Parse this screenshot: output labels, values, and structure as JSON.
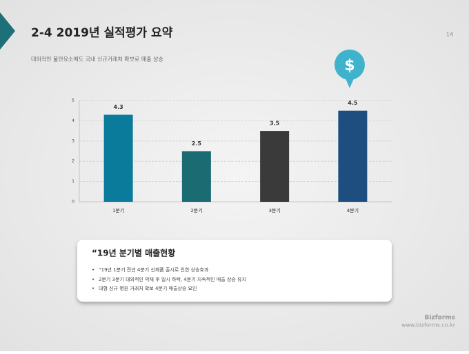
{
  "slide": {
    "title": "2-4 2019년 실적평가 요약",
    "page_number": "14",
    "subtitle": "대외적인 불안요소에도 국내 신규거래처 확보로 매출 상승",
    "icon_symbol": "$",
    "summary_title": "“19년 분기별 매출현황",
    "bullets": [
      "“19년 1분기 전년 4분기 신제품 출시로 인한 상승효과",
      "2분기 3분기 대외적인 악재 후 일시 하락, 4분기 지속적인 매출 상승 유지",
      "대형 신규 병원 거래처 확보 4분기 매출상승 요인"
    ],
    "brand": "Bizforms",
    "url": "www.bizforms.co.kr"
  },
  "chart_data": {
    "type": "bar",
    "categories": [
      "1분기",
      "2분기",
      "3분기",
      "4분기"
    ],
    "values": [
      4.3,
      2.5,
      3.5,
      4.5
    ],
    "colors": [
      "#0a7b9a",
      "#1a6b72",
      "#3a3a3a",
      "#1e4e80"
    ],
    "ylim": [
      0,
      5
    ],
    "yticks": [
      0,
      1,
      2,
      3,
      4,
      5
    ],
    "grid": true
  }
}
